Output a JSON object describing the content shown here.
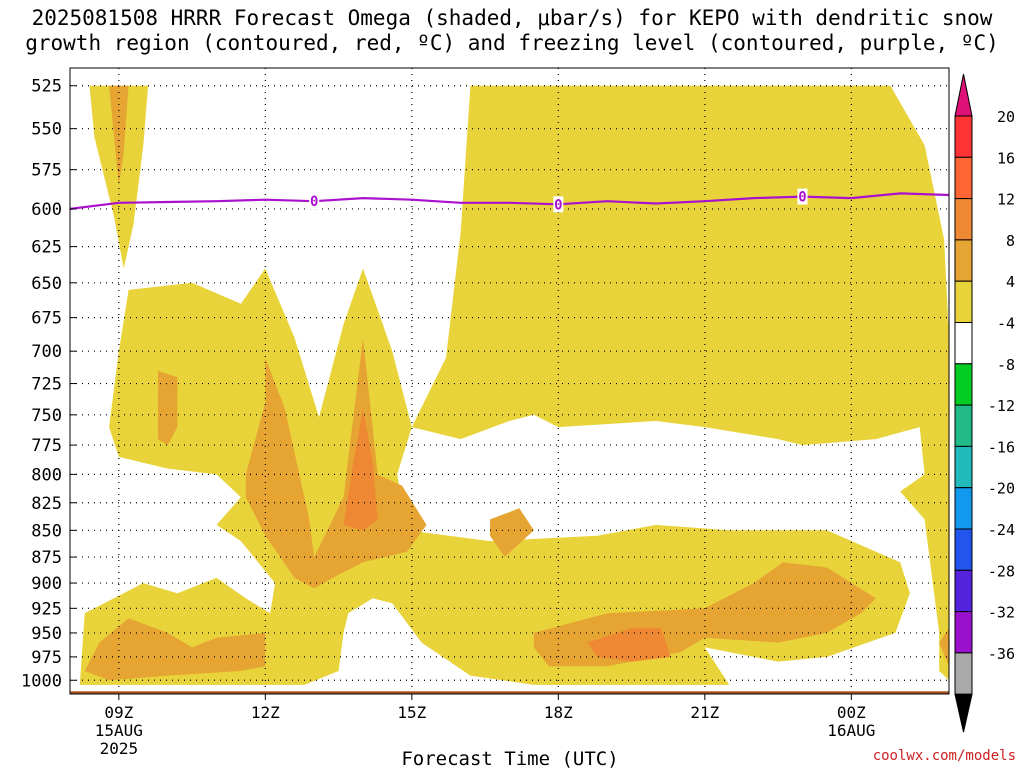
{
  "title": {
    "line1": "2025081508 HRRR Forecast Omega (shaded, μbar/s) for KEPO with dendritic snow",
    "line2": "growth region (contoured, red, ºC) and freezing level (contoured, purple, ºC)"
  },
  "credit": "coolwx.com/models",
  "chart_data": {
    "type": "contour",
    "title": "2025081508 HRRR Forecast Omega (shaded, μbar/s) for KEPO with dendritic snow growth region (contoured, red, ºC) and freezing level (contoured, purple, ºC)",
    "xlabel": "Forecast Time (UTC)",
    "ylabel": "",
    "x_hours_range": [
      8,
      26
    ],
    "y_pressure_range": [
      1015,
      515
    ],
    "y_scale": "log-pressure (inverted)",
    "grid": true,
    "x_ticks": [
      {
        "hour": 9,
        "label": "09Z",
        "sub": [
          "15AUG",
          "2025"
        ]
      },
      {
        "hour": 12,
        "label": "12Z",
        "sub": []
      },
      {
        "hour": 15,
        "label": "15Z",
        "sub": []
      },
      {
        "hour": 18,
        "label": "18Z",
        "sub": []
      },
      {
        "hour": 21,
        "label": "21Z",
        "sub": []
      },
      {
        "hour": 24,
        "label": "00Z",
        "sub": [
          "16AUG"
        ]
      }
    ],
    "y_ticks": [
      525,
      550,
      575,
      600,
      625,
      650,
      675,
      700,
      725,
      750,
      775,
      800,
      825,
      850,
      875,
      900,
      925,
      950,
      975,
      1000
    ],
    "colorbar": {
      "labels": [
        "20",
        "16",
        "12",
        "8",
        "4",
        "-4",
        "-8",
        "-12",
        "-16",
        "-20",
        "-24",
        "-28",
        "-32",
        "-36"
      ],
      "colors": [
        "#ff3333",
        "#ff6633",
        "#ee8833",
        "#e6a533",
        "#e8d43a",
        "#ffffff",
        "#00cc22",
        "#22bb88",
        "#22bbbb",
        "#1199ee",
        "#2255ee",
        "#5522dd",
        "#9911cc",
        "#aaaaaa"
      ],
      "top_arrow": "#dd1177",
      "bottom_arrow": "#000000"
    },
    "omega_shading": [
      {
        "level": 4,
        "color": "#e8d43a",
        "polygons": [
          [
            [
              8.4,
              525
            ],
            [
              9.6,
              525
            ],
            [
              9.5,
              560
            ],
            [
              9.3,
              610
            ],
            [
              9.1,
              640
            ],
            [
              8.9,
              605
            ],
            [
              8.5,
              555
            ]
          ],
          [
            [
              16.2,
              525
            ],
            [
              24.8,
              525
            ],
            [
              25.5,
              560
            ],
            [
              25.9,
              620
            ],
            [
              26,
              690
            ],
            [
              26,
              1000
            ],
            [
              25.8,
              990
            ],
            [
              25.8,
              950
            ],
            [
              25.5,
              840
            ],
            [
              25.0,
              815
            ],
            [
              25.5,
              800
            ],
            [
              25.4,
              760
            ],
            [
              24.5,
              770
            ],
            [
              23,
              775
            ],
            [
              22.5,
              770
            ],
            [
              21,
              760
            ],
            [
              20,
              755
            ],
            [
              18,
              760
            ],
            [
              17.5,
              750
            ],
            [
              17,
              755
            ],
            [
              16,
              770
            ],
            [
              15,
              760
            ],
            [
              15.7,
              705
            ],
            [
              16.0,
              615
            ]
          ],
          [
            [
              17,
              660
            ],
            [
              22.0,
              660
            ],
            [
              22.3,
              610
            ],
            [
              22.9,
              640
            ],
            [
              23.6,
              700
            ],
            [
              24.1,
              650
            ],
            [
              24.5,
              670
            ],
            [
              24.8,
              690
            ],
            [
              25,
              720
            ],
            [
              25.1,
              700
            ],
            [
              24.9,
              640
            ],
            [
              24.6,
              600
            ],
            [
              24.3,
              585
            ],
            [
              22.6,
              590
            ],
            [
              21.5,
              590
            ],
            [
              20,
              588
            ],
            [
              19,
              585
            ],
            [
              18,
              590
            ],
            [
              17,
              592
            ],
            [
              16.9,
              620
            ]
          ],
          [
            [
              9.2,
              655
            ],
            [
              10.5,
              650
            ],
            [
              11.5,
              665
            ],
            [
              12.0,
              640
            ],
            [
              12.6,
              690
            ],
            [
              13.1,
              752
            ],
            [
              13.6,
              680
            ],
            [
              14.0,
              640
            ],
            [
              14.6,
              700
            ],
            [
              15.0,
              760
            ],
            [
              14.7,
              800
            ],
            [
              14.9,
              850
            ],
            [
              16.6,
              860
            ],
            [
              18.8,
              855
            ],
            [
              20,
              845
            ],
            [
              21.5,
              850
            ],
            [
              23.5,
              850
            ],
            [
              25.0,
              880
            ],
            [
              25.2,
              910
            ],
            [
              24.9,
              950
            ],
            [
              23.5,
              975
            ],
            [
              22.5,
              980
            ],
            [
              21.0,
              965
            ],
            [
              21.5,
              1005
            ],
            [
              17.5,
              1005
            ],
            [
              16.2,
              995
            ],
            [
              15.2,
              960
            ],
            [
              14.6,
              920
            ],
            [
              14.2,
              915
            ],
            [
              13.7,
              930
            ],
            [
              13.6,
              950
            ],
            [
              13.5,
              990
            ],
            [
              12.8,
              1005
            ],
            [
              8.2,
              1005
            ],
            [
              8.3,
              930
            ],
            [
              9.5,
              900
            ],
            [
              10.2,
              910
            ],
            [
              11.0,
              895
            ],
            [
              11.6,
              915
            ],
            [
              12.1,
              930
            ],
            [
              12.2,
              900
            ],
            [
              11.5,
              860
            ],
            [
              11.0,
              845
            ],
            [
              11.5,
              820
            ],
            [
              11.0,
              800
            ],
            [
              10.0,
              795
            ],
            [
              9.0,
              785
            ],
            [
              8.8,
              760
            ],
            [
              9.0,
              700
            ]
          ],
          [
            [
              25.8,
              955
            ],
            [
              26,
              940
            ],
            [
              26,
              990
            ]
          ]
        ]
      },
      {
        "level": 8,
        "color": "#e6a533",
        "polygons": [
          [
            [
              8.8,
              525
            ],
            [
              9.2,
              525
            ],
            [
              9.1,
              565
            ],
            [
              9.0,
              585
            ],
            [
              8.9,
              555
            ]
          ],
          [
            [
              9.8,
              715
            ],
            [
              10.2,
              720
            ],
            [
              10.2,
              760
            ],
            [
              10.0,
              775
            ],
            [
              9.8,
              770
            ]
          ],
          [
            [
              11.6,
              800
            ],
            [
              12.0,
              740
            ],
            [
              12.0,
              705
            ],
            [
              12.4,
              745
            ],
            [
              12.9,
              840
            ],
            [
              13.0,
              875
            ],
            [
              13.6,
              820
            ],
            [
              14.0,
              690
            ],
            [
              14.3,
              800
            ],
            [
              14.8,
              810
            ],
            [
              15.3,
              845
            ],
            [
              14.9,
              870
            ],
            [
              14.0,
              880
            ],
            [
              13.5,
              892
            ],
            [
              13.0,
              905
            ],
            [
              12.6,
              895
            ],
            [
              12.0,
              855
            ],
            [
              11.6,
              820
            ]
          ],
          [
            [
              16.6,
              840
            ],
            [
              17.2,
              830
            ],
            [
              17.5,
              850
            ],
            [
              16.9,
              875
            ],
            [
              16.6,
              855
            ]
          ],
          [
            [
              8.6,
              960
            ],
            [
              9.2,
              935
            ],
            [
              10.0,
              950
            ],
            [
              10.5,
              965
            ],
            [
              11.0,
              955
            ],
            [
              12.0,
              950
            ],
            [
              12.0,
              985
            ],
            [
              11.5,
              990
            ],
            [
              10.0,
              995
            ],
            [
              8.8,
              1000
            ],
            [
              8.3,
              990
            ]
          ],
          [
            [
              17.5,
              950
            ],
            [
              19.0,
              930
            ],
            [
              21.0,
              925
            ],
            [
              22.0,
              900
            ],
            [
              22.6,
              880
            ],
            [
              23.5,
              885
            ],
            [
              24.5,
              915
            ],
            [
              24.2,
              930
            ],
            [
              23.5,
              950
            ],
            [
              22.5,
              960
            ],
            [
              21.0,
              955
            ],
            [
              20.5,
              970
            ],
            [
              19.0,
              985
            ],
            [
              17.8,
              985
            ],
            [
              17.5,
              965
            ]
          ],
          [
            [
              25.8,
              960
            ],
            [
              26,
              945
            ],
            [
              26,
              985
            ]
          ]
        ]
      },
      {
        "level": 12,
        "color": "#ee8833",
        "polygons": [
          [
            [
              13.6,
              845
            ],
            [
              13.8,
              790
            ],
            [
              14.0,
              745
            ],
            [
              14.2,
              790
            ],
            [
              14.3,
              840
            ],
            [
              14.0,
              850
            ]
          ],
          [
            [
              18.6,
              960
            ],
            [
              19.5,
              945
            ],
            [
              20.1,
              945
            ],
            [
              20.3,
              975
            ],
            [
              19.5,
              980
            ],
            [
              18.8,
              975
            ]
          ]
        ]
      }
    ],
    "freezing_level": {
      "color": "#aa11cc",
      "label": "0",
      "label_hours": [
        13,
        18,
        23
      ],
      "points": [
        [
          8,
          600
        ],
        [
          9,
          596
        ],
        [
          10,
          595.5
        ],
        [
          11,
          595
        ],
        [
          12,
          594
        ],
        [
          13,
          595
        ],
        [
          14,
          593
        ],
        [
          15,
          594
        ],
        [
          16,
          596
        ],
        [
          17,
          596
        ],
        [
          18,
          597
        ],
        [
          19,
          595
        ],
        [
          20,
          596.5
        ],
        [
          21,
          595
        ],
        [
          22,
          593
        ],
        [
          23,
          592
        ],
        [
          24,
          593
        ],
        [
          25,
          590
        ],
        [
          26,
          591
        ]
      ]
    },
    "ground": {
      "color": "#aa5522",
      "pressure": 1012
    }
  }
}
